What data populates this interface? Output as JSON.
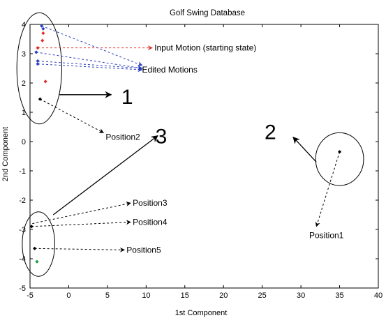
{
  "chart_data": {
    "type": "scatter",
    "title": "Golf Swing Database",
    "xlabel": "1st Component",
    "ylabel": "2nd Component",
    "xlim": [
      -5,
      40
    ],
    "ylim": [
      -5,
      4
    ],
    "xticks": [
      "-5",
      "0",
      "5",
      "10",
      "15",
      "20",
      "25",
      "30",
      "35",
      "40"
    ],
    "yticks": [
      "-5",
      "-4",
      "-3",
      "-2",
      "-1",
      "0",
      "1",
      "2",
      "3",
      "4"
    ],
    "grid": false,
    "points": [
      {
        "x": -3.5,
        "y": 3.95,
        "color": "#2b3fbf"
      },
      {
        "x": -3.3,
        "y": 3.85,
        "color": "#2b3fbf"
      },
      {
        "x": -3.3,
        "y": 3.7,
        "color": "#e0302a"
      },
      {
        "x": -3.4,
        "y": 3.45,
        "color": "#e0302a"
      },
      {
        "x": -4.0,
        "y": 3.2,
        "color": "#e0302a"
      },
      {
        "x": -4.2,
        "y": 3.05,
        "color": "#2b3fbf"
      },
      {
        "x": -4.0,
        "y": 2.75,
        "color": "#2b3fbf"
      },
      {
        "x": -4.0,
        "y": 2.65,
        "color": "#2b3fbf"
      },
      {
        "x": -3.0,
        "y": 2.05,
        "color": "#e0302a"
      },
      {
        "x": -3.7,
        "y": 1.45,
        "color": "#000000"
      },
      {
        "x": 35.0,
        "y": -0.35,
        "color": "#000000"
      },
      {
        "x": -4.8,
        "y": -2.9,
        "color": "#000000"
      },
      {
        "x": -4.4,
        "y": -3.65,
        "color": "#000000"
      },
      {
        "x": -4.1,
        "y": -4.1,
        "color": "#1a9a3a"
      }
    ],
    "groups": [
      {
        "label": "1",
        "cx": -3.8,
        "cy": 2.5,
        "rx": 2.9,
        "ry": 1.9
      },
      {
        "label": "2",
        "cx": 35.0,
        "cy": -0.6,
        "rx": 3.1,
        "ry": 0.9
      },
      {
        "label": "3",
        "cx": -3.9,
        "cy": -3.5,
        "rx": 2.1,
        "ry": 1.1
      }
    ],
    "annotations": [
      {
        "text": "Input Motion (starting state)",
        "color": "#e0302a",
        "from": [
          -4.0,
          3.2
        ],
        "to": [
          10.8,
          3.2
        ],
        "tx": 10.8,
        "ty": 3.2,
        "dashed": true
      },
      {
        "text": "Edited Motions",
        "color": "#2b3fbf",
        "from": [
          -3.5,
          3.95
        ],
        "to": [
          9.5,
          2.6
        ],
        "tx": 9.2,
        "ty": 2.45,
        "dashed": true
      },
      {
        "text": "",
        "color": "#2b3fbf",
        "from": [
          -4.2,
          3.05
        ],
        "to": [
          9.5,
          2.5
        ],
        "tx": null,
        "ty": null,
        "dashed": true
      },
      {
        "text": "",
        "color": "#2b3fbf",
        "from": [
          -4.0,
          2.75
        ],
        "to": [
          9.5,
          2.5
        ],
        "tx": null,
        "ty": null,
        "dashed": true
      },
      {
        "text": "",
        "color": "#2b3fbf",
        "from": [
          -4.0,
          2.65
        ],
        "to": [
          9.5,
          2.45
        ],
        "tx": null,
        "ty": null,
        "dashed": true
      },
      {
        "text": "Position2",
        "color": "#000000",
        "from": [
          -3.7,
          1.45
        ],
        "to": [
          4.5,
          0.3
        ],
        "tx": 4.5,
        "ty": 0.15,
        "dashed": true
      },
      {
        "text": "Position1",
        "color": "#000000",
        "from": [
          35.0,
          -0.35
        ],
        "to": [
          32.0,
          -2.9
        ],
        "tx": 30.8,
        "ty": -3.2,
        "dashed": true
      },
      {
        "text": "Position3",
        "color": "#000000",
        "from": [
          -4.7,
          -2.8
        ],
        "to": [
          8.0,
          -2.1
        ],
        "tx": 8.0,
        "ty": -2.1,
        "dashed": true
      },
      {
        "text": "Position4",
        "color": "#000000",
        "from": [
          -4.8,
          -2.9
        ],
        "to": [
          8.0,
          -2.75
        ],
        "tx": 8.0,
        "ty": -2.75,
        "dashed": true
      },
      {
        "text": "Position5",
        "color": "#000000",
        "from": [
          -4.4,
          -3.65
        ],
        "to": [
          7.2,
          -3.7
        ],
        "tx": 7.2,
        "ty": -3.7,
        "dashed": true
      }
    ],
    "group_arrows": [
      {
        "label": "1",
        "from": [
          -1.2,
          1.6
        ],
        "to": [
          5.5,
          1.6
        ],
        "lx": 6.8,
        "ly": 1.55
      },
      {
        "label": "2",
        "from": [
          32.0,
          -0.7
        ],
        "to": [
          29.0,
          0.15
        ],
        "lx": 25.3,
        "ly": 0.35
      },
      {
        "label": "3",
        "from": [
          -2.0,
          -2.5
        ],
        "to": [
          11.5,
          0.2
        ],
        "lx": 11.2,
        "ly": 0.2
      }
    ]
  }
}
